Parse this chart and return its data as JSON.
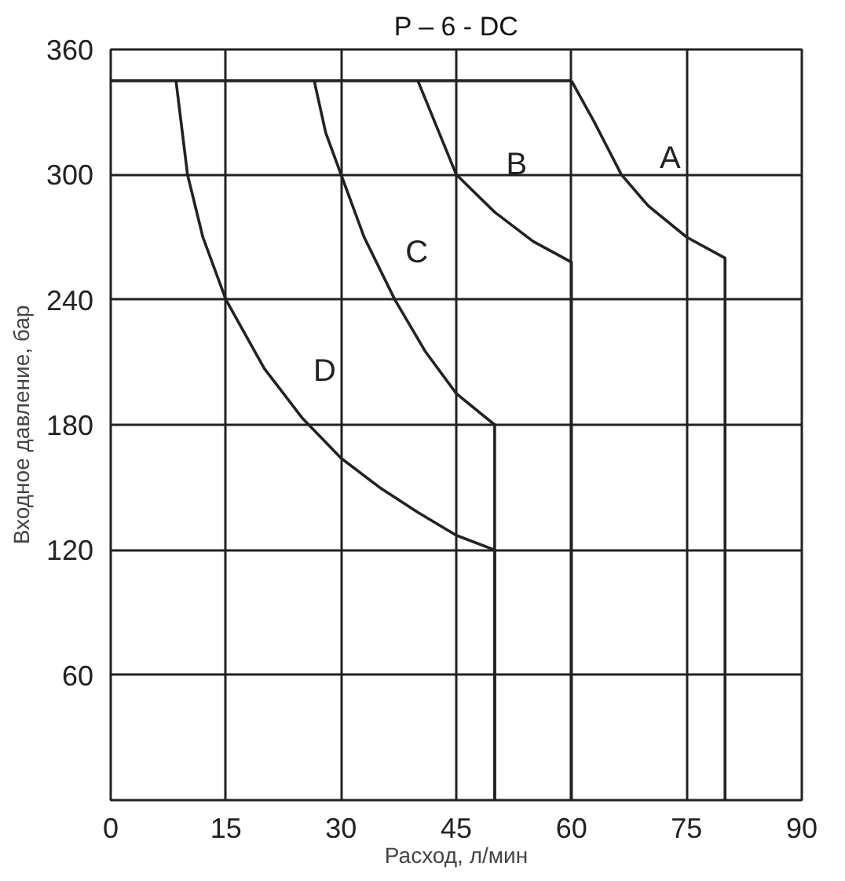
{
  "chart_data": {
    "type": "line",
    "title": "P – 6 - DC",
    "xlabel": "Расход, л/мин",
    "ylabel": "Входное давление, бар",
    "xlim": [
      0,
      90
    ],
    "ylim": [
      0,
      360
    ],
    "xticks": [
      0,
      15,
      30,
      45,
      60,
      75,
      90
    ],
    "yticks": [
      {
        "value": 0,
        "label": null
      },
      60,
      120,
      180,
      240,
      300,
      360
    ],
    "grid": true,
    "line_style": "solid",
    "marker": "none",
    "series": [
      {
        "color": "#222222",
        "x": [
          0,
          60
        ],
        "values": [
          345,
          345
        ]
      },
      {
        "name": "A",
        "color": "#222222",
        "x": [
          60,
          63,
          66.5,
          70,
          75,
          80,
          80
        ],
        "values": [
          345,
          325,
          300,
          285,
          270,
          260,
          0
        ]
      },
      {
        "name": "B",
        "color": "#222222",
        "x": [
          40,
          45,
          50,
          55,
          60,
          60
        ],
        "values": [
          345,
          300,
          282,
          268,
          258,
          0
        ]
      },
      {
        "name": "C",
        "color": "#222222",
        "x": [
          26.5,
          28,
          30,
          33,
          37,
          41,
          45,
          50,
          50
        ],
        "values": [
          345,
          320,
          300,
          270,
          240,
          215,
          195,
          180,
          0
        ]
      },
      {
        "name": "D",
        "color": "#222222",
        "x": [
          8.5,
          9,
          10,
          12,
          15,
          20,
          25,
          30,
          35,
          40,
          45,
          50,
          50
        ],
        "values": [
          345,
          330,
          300,
          270,
          240,
          207,
          183,
          164,
          150,
          138,
          127,
          120,
          0
        ]
      }
    ]
  }
}
